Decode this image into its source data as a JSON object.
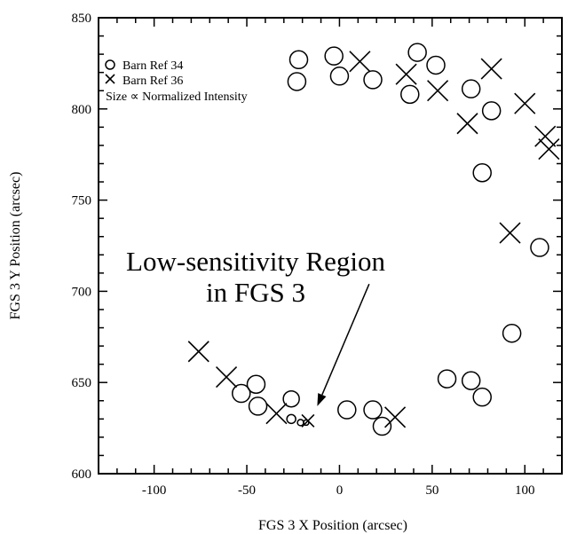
{
  "chart_data": {
    "type": "scatter",
    "xlabel": "FGS 3 X Position (arcsec)",
    "ylabel": "FGS 3 Y Position (arcsec)",
    "xlim": [
      -130,
      120
    ],
    "ylim": [
      600,
      850
    ],
    "x_ticks": [
      -100,
      -50,
      0,
      50,
      100
    ],
    "x_tick_labels": [
      "-100",
      "-50",
      "0",
      "50",
      "100"
    ],
    "y_ticks": [
      600,
      650,
      700,
      750,
      800,
      850
    ],
    "y_tick_labels": [
      "600",
      "650",
      "700",
      "750",
      "800",
      "850"
    ],
    "legend": {
      "placement": "top-left",
      "entries": [
        "Barn Ref 34",
        "Barn Ref 36"
      ],
      "note": "Size ∝ Normalized Intensity"
    },
    "annotation": {
      "lines": [
        "Low-sensitivity Region",
        "in FGS 3"
      ],
      "arrow_from": [
        16,
        704
      ],
      "arrow_to": [
        -12,
        637
      ]
    },
    "series": [
      {
        "name": "Barn Ref 34",
        "marker": "circle",
        "points": [
          {
            "x": -22,
            "y": 827,
            "s": 1.0
          },
          {
            "x": -23,
            "y": 815,
            "s": 1.0
          },
          {
            "x": -3,
            "y": 829,
            "s": 1.0
          },
          {
            "x": 0,
            "y": 818,
            "s": 1.0
          },
          {
            "x": 18,
            "y": 816,
            "s": 1.0
          },
          {
            "x": 38,
            "y": 808,
            "s": 1.0
          },
          {
            "x": 42,
            "y": 831,
            "s": 1.0
          },
          {
            "x": 52,
            "y": 824,
            "s": 1.0
          },
          {
            "x": 71,
            "y": 811,
            "s": 1.0
          },
          {
            "x": 82,
            "y": 799,
            "s": 1.0
          },
          {
            "x": 77,
            "y": 765,
            "s": 1.0
          },
          {
            "x": 108,
            "y": 724,
            "s": 1.0
          },
          {
            "x": 93,
            "y": 677,
            "s": 1.0
          },
          {
            "x": 58,
            "y": 652,
            "s": 1.0
          },
          {
            "x": 71,
            "y": 651,
            "s": 1.0
          },
          {
            "x": 77,
            "y": 642,
            "s": 1.0
          },
          {
            "x": -53,
            "y": 644,
            "s": 1.0
          },
          {
            "x": -45,
            "y": 649,
            "s": 1.0
          },
          {
            "x": -44,
            "y": 637,
            "s": 1.0
          },
          {
            "x": -26,
            "y": 641,
            "s": 0.9
          },
          {
            "x": -26,
            "y": 630,
            "s": 0.5
          },
          {
            "x": -21,
            "y": 628,
            "s": 0.35
          },
          {
            "x": -18,
            "y": 628,
            "s": 0.3
          },
          {
            "x": 4,
            "y": 635,
            "s": 1.0
          },
          {
            "x": 18,
            "y": 635,
            "s": 1.0
          },
          {
            "x": 23,
            "y": 626,
            "s": 1.0
          }
        ]
      },
      {
        "name": "Barn Ref 36",
        "marker": "x",
        "points": [
          {
            "x": 11,
            "y": 826,
            "s": 1.0
          },
          {
            "x": 36,
            "y": 819,
            "s": 1.0
          },
          {
            "x": 53,
            "y": 810,
            "s": 1.0
          },
          {
            "x": 82,
            "y": 822,
            "s": 1.0
          },
          {
            "x": 69,
            "y": 792,
            "s": 1.0
          },
          {
            "x": 100,
            "y": 803,
            "s": 1.0
          },
          {
            "x": 111,
            "y": 785,
            "s": 1.0
          },
          {
            "x": 113,
            "y": 778,
            "s": 1.0
          },
          {
            "x": 92,
            "y": 732,
            "s": 1.0
          },
          {
            "x": -76,
            "y": 667,
            "s": 1.0
          },
          {
            "x": -61,
            "y": 653,
            "s": 1.0
          },
          {
            "x": -34,
            "y": 633,
            "s": 1.0
          },
          {
            "x": -17,
            "y": 629,
            "s": 0.6
          },
          {
            "x": 30,
            "y": 631,
            "s": 1.0
          }
        ]
      }
    ]
  }
}
